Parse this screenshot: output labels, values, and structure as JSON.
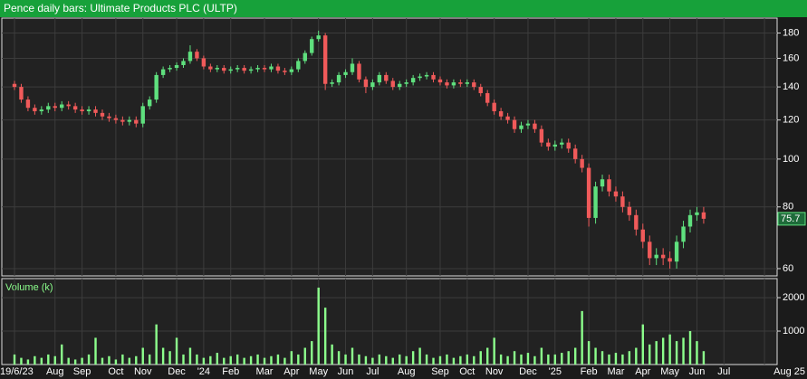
{
  "chart_data": [
    {
      "type": "candlestick",
      "title": "Pence daily bars: Ultimate Products PLC (ULTP)",
      "categories": [
        "19/6/23",
        null,
        null,
        null,
        null,
        null,
        "Aug",
        null,
        null,
        null,
        "Sep",
        null,
        null,
        null,
        null,
        "Oct",
        null,
        null,
        null,
        "Nov",
        null,
        null,
        null,
        null,
        "Dec",
        null,
        null,
        null,
        "'24",
        null,
        null,
        null,
        "Feb",
        null,
        null,
        null,
        null,
        "Mar",
        null,
        null,
        null,
        "Apr",
        null,
        null,
        null,
        "May",
        null,
        null,
        null,
        "Jun",
        null,
        null,
        null,
        "Jul",
        null,
        null,
        null,
        null,
        "Aug",
        null,
        null,
        null,
        null,
        "Sep",
        null,
        null,
        null,
        "Oct",
        null,
        null,
        null,
        "Nov",
        null,
        null,
        null,
        null,
        "Dec",
        null,
        null,
        null,
        "'25",
        null,
        null,
        null,
        null,
        "Feb",
        null,
        null,
        null,
        "Mar",
        null,
        null,
        null,
        "Apr",
        null,
        null,
        null,
        "May",
        null,
        null,
        null,
        "Jun",
        null,
        null,
        null,
        "Jul",
        null,
        null,
        null,
        null,
        null,
        "Aug 25",
        null
      ],
      "open": [
        142,
        140,
        132,
        127,
        125,
        126,
        128,
        127,
        129,
        128,
        126,
        125,
        126,
        124,
        122,
        121,
        120,
        119,
        120,
        118,
        128,
        132,
        148,
        152,
        153,
        155,
        158,
        165,
        160,
        154,
        152,
        153,
        151,
        152,
        153,
        151,
        152,
        153,
        152,
        154,
        151,
        150,
        152,
        158,
        164,
        175,
        178,
        142,
        143,
        148,
        150,
        156,
        145,
        140,
        143,
        148,
        144,
        140,
        142,
        143,
        146,
        147,
        148,
        145,
        143,
        141,
        143,
        142,
        143,
        140,
        136,
        130,
        125,
        122,
        120,
        115,
        117,
        118,
        115,
        108,
        106,
        107,
        108,
        105,
        100,
        96,
        76,
        88,
        91,
        86,
        84,
        80,
        77,
        72,
        68,
        63,
        64,
        63,
        62,
        68,
        73,
        77,
        78,
        null,
        null,
        null,
        null,
        null,
        null,
        null,
        null,
        null,
        null
      ],
      "high": [
        144,
        142,
        134,
        129,
        128,
        130,
        130,
        131,
        131,
        130,
        128,
        128,
        128,
        126,
        124,
        123,
        122,
        122,
        122,
        130,
        134,
        150,
        154,
        155,
        157,
        160,
        170,
        167,
        162,
        156,
        155,
        155,
        154,
        155,
        155,
        154,
        155,
        155,
        156,
        156,
        153,
        154,
        160,
        166,
        177,
        182,
        180,
        145,
        150,
        152,
        160,
        158,
        147,
        145,
        150,
        150,
        146,
        144,
        145,
        148,
        149,
        150,
        150,
        147,
        145,
        145,
        145,
        145,
        145,
        142,
        138,
        132,
        127,
        124,
        122,
        119,
        120,
        120,
        117,
        110,
        109,
        110,
        110,
        107,
        102,
        98,
        90,
        93,
        93,
        88,
        86,
        82,
        79,
        74,
        70,
        66,
        66,
        65,
        70,
        75,
        79,
        80,
        80,
        null,
        null,
        null,
        null,
        null,
        null,
        null,
        null,
        null,
        null
      ],
      "low": [
        138,
        130,
        125,
        123,
        123,
        124,
        125,
        125,
        126,
        124,
        123,
        123,
        122,
        120,
        119,
        118,
        117,
        117,
        116,
        116,
        126,
        130,
        146,
        150,
        151,
        153,
        156,
        158,
        152,
        150,
        150,
        149,
        149,
        150,
        149,
        149,
        150,
        150,
        150,
        149,
        148,
        148,
        150,
        156,
        162,
        173,
        138,
        140,
        141,
        146,
        148,
        143,
        136,
        138,
        141,
        142,
        138,
        138,
        140,
        141,
        144,
        145,
        143,
        141,
        139,
        139,
        140,
        140,
        138,
        134,
        128,
        123,
        120,
        118,
        113,
        113,
        115,
        113,
        106,
        104,
        104,
        105,
        103,
        98,
        94,
        73,
        74,
        86,
        84,
        82,
        78,
        75,
        70,
        66,
        61,
        61,
        61,
        60,
        60,
        66,
        71,
        75,
        74,
        null,
        null,
        null,
        null,
        null,
        null,
        null,
        null,
        null,
        null
      ],
      "close": [
        140,
        132,
        127,
        125,
        126,
        128,
        127,
        129,
        128,
        126,
        125,
        126,
        124,
        122,
        121,
        120,
        119,
        120,
        118,
        128,
        132,
        148,
        152,
        153,
        155,
        158,
        165,
        160,
        154,
        152,
        153,
        151,
        152,
        153,
        151,
        152,
        153,
        152,
        154,
        151,
        150,
        152,
        158,
        164,
        175,
        178,
        142,
        143,
        148,
        150,
        156,
        145,
        140,
        143,
        148,
        144,
        140,
        142,
        143,
        146,
        147,
        148,
        145,
        143,
        141,
        143,
        142,
        143,
        140,
        136,
        130,
        125,
        122,
        120,
        115,
        117,
        118,
        115,
        108,
        106,
        107,
        108,
        105,
        100,
        96,
        76,
        88,
        91,
        86,
        84,
        80,
        77,
        72,
        68,
        63,
        64,
        63,
        62,
        68,
        73,
        77,
        78,
        75.7,
        null,
        null,
        null,
        null,
        null,
        null,
        null,
        null,
        null,
        null
      ],
      "up_color": "#5fe07e",
      "down_color": "#f05a5a",
      "log_scale": true,
      "ylim": [
        58,
        193
      ],
      "yticks": [
        60,
        80,
        100,
        120,
        140,
        160,
        180
      ],
      "grid": true
    },
    {
      "type": "bar",
      "title": "Volume (k)",
      "color": "#8cff8c",
      "values": [
        300,
        200,
        150,
        250,
        200,
        300,
        250,
        600,
        200,
        150,
        200,
        300,
        800,
        200,
        250,
        150,
        300,
        200,
        250,
        500,
        300,
        1200,
        500,
        400,
        800,
        300,
        500,
        300,
        200,
        250,
        350,
        200,
        250,
        300,
        200,
        250,
        300,
        200,
        250,
        300,
        200,
        400,
        300,
        500,
        700,
        2300,
        1700,
        600,
        400,
        300,
        500,
        300,
        250,
        200,
        300,
        250,
        200,
        300,
        250,
        400,
        500,
        300,
        200,
        250,
        300,
        200,
        250,
        300,
        250,
        400,
        500,
        800,
        300,
        250,
        400,
        300,
        350,
        250,
        500,
        300,
        300,
        350,
        400,
        500,
        1600,
        700,
        500,
        400,
        300,
        350,
        300,
        400,
        500,
        1200,
        600,
        700,
        800,
        900,
        700,
        800,
        1000,
        700,
        400,
        null,
        null,
        null,
        null,
        null,
        null,
        null,
        null,
        null,
        null
      ],
      "ylim": [
        0,
        2570
      ],
      "yticks": [
        1000,
        2000
      ],
      "grid": true
    }
  ]
}
